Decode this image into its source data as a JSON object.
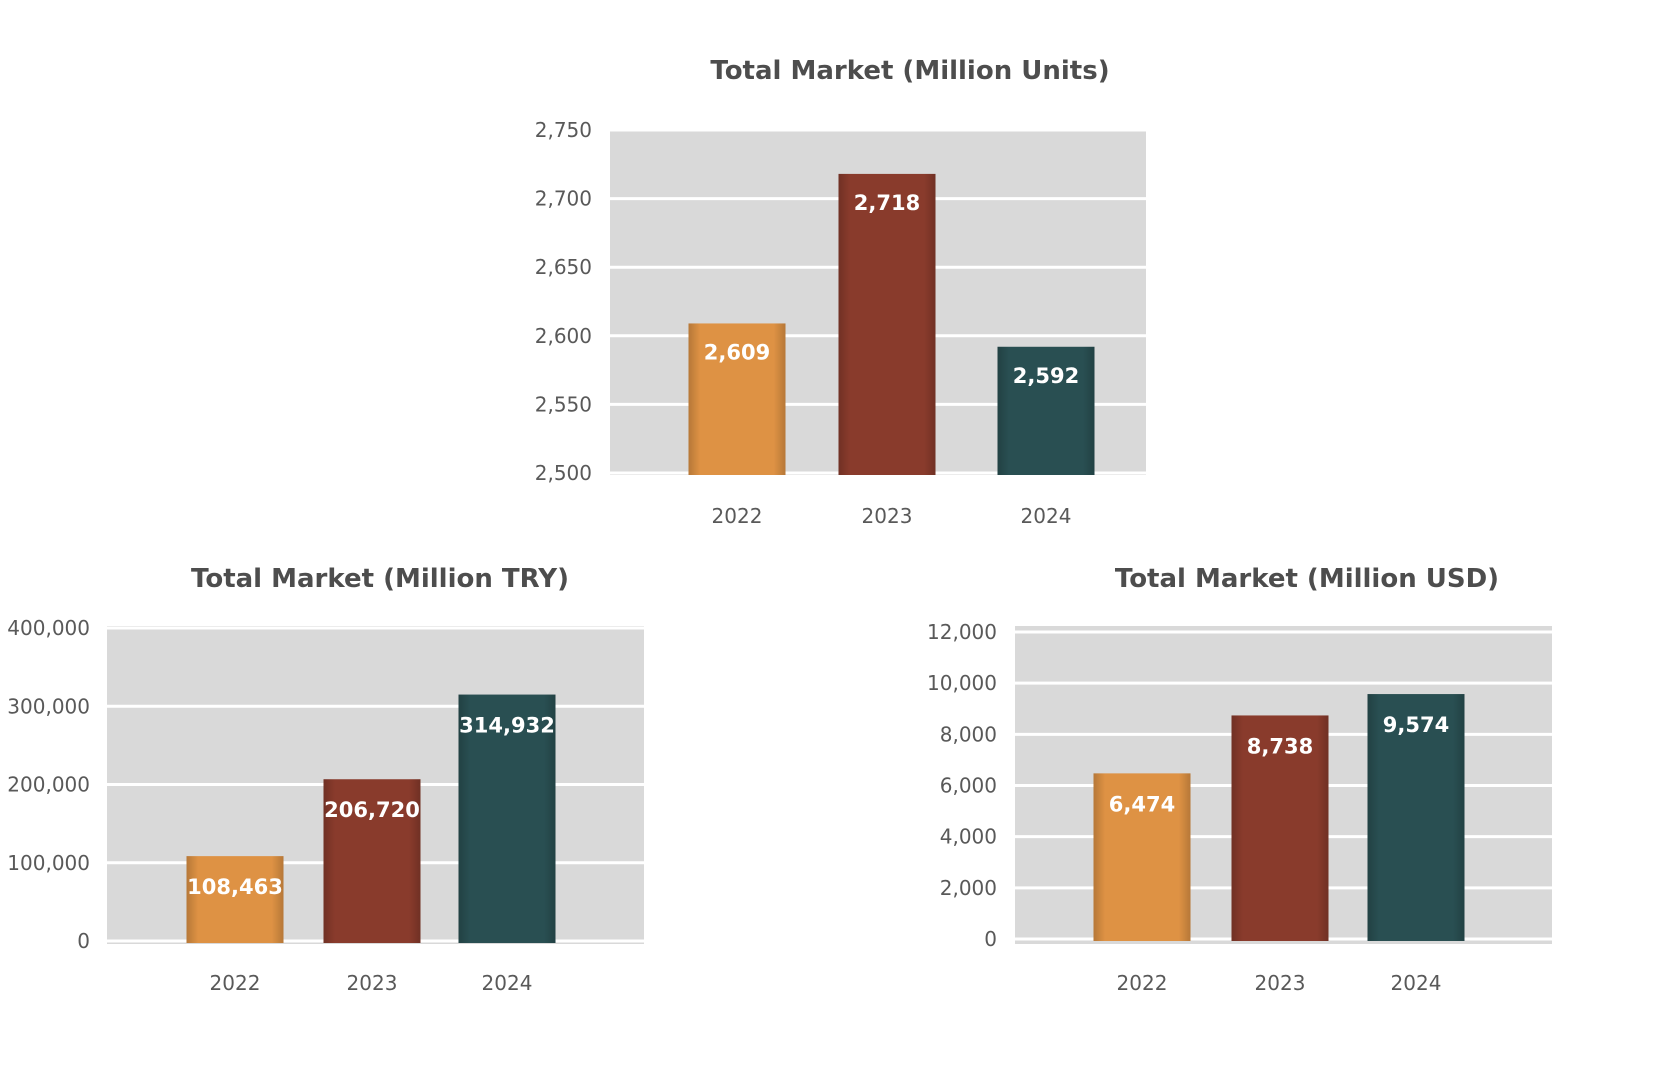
{
  "colors": {
    "plot_background": "#d9d9d9",
    "gridline": "#ffffff",
    "tick_text": "#595959",
    "title_text": "#4d4d4d",
    "bar_2022": "#de9244",
    "bar_2023": "#893b2c",
    "bar_2024": "#294f52",
    "data_label": "#ffffff"
  },
  "chart_data": [
    {
      "type": "bar",
      "title": "Total Market (Million Units)",
      "xlabel": "",
      "ylabel": "",
      "categories": [
        "2022",
        "2023",
        "2024"
      ],
      "values": [
        2609,
        2718,
        2592
      ],
      "value_labels": [
        "2,609",
        "2,718",
        "2,592"
      ],
      "ylim": [
        2500,
        2750
      ],
      "yticks": [
        2500,
        2550,
        2600,
        2650,
        2700,
        2750
      ],
      "ytick_labels": [
        "2,500",
        "2,550",
        "2,600",
        "2,650",
        "2,700",
        "2,750"
      ],
      "grid": true,
      "legend": "none"
    },
    {
      "type": "bar",
      "title": "Total Market (Million TRY)",
      "xlabel": "",
      "ylabel": "",
      "categories": [
        "2022",
        "2023",
        "2024"
      ],
      "values": [
        108463,
        206720,
        314932
      ],
      "value_labels": [
        "108,463",
        "206,720",
        "314,932"
      ],
      "ylim": [
        0,
        400000
      ],
      "yticks": [
        0,
        100000,
        200000,
        300000,
        400000
      ],
      "ytick_labels": [
        "0",
        "100,000",
        "200,000",
        "300,000",
        "400,000"
      ],
      "grid": true,
      "legend": "none"
    },
    {
      "type": "bar",
      "title": "Total Market (Million USD)",
      "xlabel": "",
      "ylabel": "",
      "categories": [
        "2022",
        "2023",
        "2024"
      ],
      "values": [
        6474,
        8738,
        9574
      ],
      "value_labels": [
        "6,474",
        "8,738",
        "9,574"
      ],
      "ylim": [
        0,
        12000
      ],
      "yticks": [
        0,
        2000,
        4000,
        6000,
        8000,
        10000,
        12000
      ],
      "ytick_labels": [
        "0",
        "2,000",
        "4,000",
        "6,000",
        "8,000",
        "10,000",
        "12,000"
      ],
      "grid": true,
      "legend": "none"
    }
  ]
}
